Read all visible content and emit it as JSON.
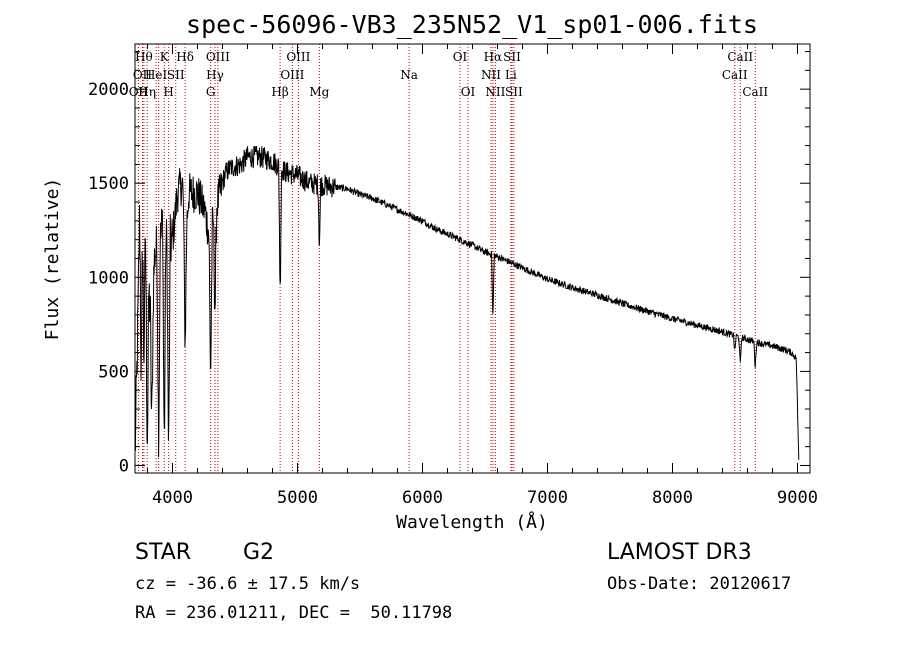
{
  "chart_data": {
    "type": "line",
    "title": "spec-56096-VB3_235N52_V1_sp01-006.fits",
    "xlabel": "Wavelength (Å)",
    "ylabel": "Flux (relative)",
    "xlim": [
      3700,
      9100
    ],
    "ylim": [
      -40,
      2240
    ],
    "xticks": [
      4000,
      5000,
      6000,
      7000,
      8000,
      9000
    ],
    "yticks": [
      0,
      500,
      1000,
      1500,
      2000
    ],
    "spectrum_anchors": [
      [
        3700,
        50
      ],
      [
        3720,
        650
      ],
      [
        3740,
        1450
      ],
      [
        3760,
        1550
      ],
      [
        3780,
        1250
      ],
      [
        3800,
        1050
      ],
      [
        3830,
        700
      ],
      [
        3860,
        1150
      ],
      [
        3890,
        1100
      ],
      [
        3920,
        1300
      ],
      [
        3960,
        1150
      ],
      [
        4000,
        1200
      ],
      [
        4040,
        1450
      ],
      [
        4080,
        1500
      ],
      [
        4101,
        1150
      ],
      [
        4130,
        1450
      ],
      [
        4200,
        1450
      ],
      [
        4260,
        1350
      ],
      [
        4300,
        1200
      ],
      [
        4340,
        1350
      ],
      [
        4380,
        1450
      ],
      [
        4420,
        1550
      ],
      [
        4460,
        1580
      ],
      [
        4500,
        1590
      ],
      [
        4550,
        1600
      ],
      [
        4600,
        1640
      ],
      [
        4700,
        1640
      ],
      [
        4800,
        1620
      ],
      [
        4900,
        1560
      ],
      [
        5000,
        1540
      ],
      [
        5100,
        1500
      ],
      [
        5200,
        1490
      ],
      [
        5300,
        1480
      ],
      [
        5400,
        1470
      ],
      [
        5500,
        1440
      ],
      [
        5600,
        1420
      ],
      [
        5700,
        1390
      ],
      [
        5800,
        1360
      ],
      [
        5900,
        1330
      ],
      [
        6000,
        1300
      ],
      [
        6100,
        1260
      ],
      [
        6200,
        1230
      ],
      [
        6300,
        1200
      ],
      [
        6400,
        1170
      ],
      [
        6500,
        1135
      ],
      [
        6600,
        1110
      ],
      [
        6700,
        1080
      ],
      [
        6800,
        1050
      ],
      [
        7000,
        990
      ],
      [
        7200,
        945
      ],
      [
        7400,
        905
      ],
      [
        7600,
        860
      ],
      [
        7800,
        820
      ],
      [
        8000,
        780
      ],
      [
        8200,
        745
      ],
      [
        8400,
        710
      ],
      [
        8500,
        690
      ],
      [
        8600,
        670
      ],
      [
        8700,
        650
      ],
      [
        8800,
        635
      ],
      [
        8900,
        615
      ],
      [
        8950,
        600
      ],
      [
        8990,
        570
      ],
      [
        9000,
        300
      ],
      [
        9010,
        30
      ]
    ],
    "absorption_dips": [
      {
        "x": 3750,
        "depth": 1000
      },
      {
        "x": 3770,
        "depth": 800
      },
      {
        "x": 3798,
        "depth": 900
      },
      {
        "x": 3835,
        "depth": 500
      },
      {
        "x": 3889,
        "depth": 900
      },
      {
        "x": 3934,
        "depth": 1100
      },
      {
        "x": 3969,
        "depth": 1050
      },
      {
        "x": 4101,
        "depth": 500
      },
      {
        "x": 4305,
        "depth": 700
      },
      {
        "x": 4340,
        "depth": 500
      },
      {
        "x": 4861,
        "depth": 650
      },
      {
        "x": 5175,
        "depth": 300
      },
      {
        "x": 6563,
        "depth": 320
      },
      {
        "x": 8498,
        "depth": 80
      },
      {
        "x": 8542,
        "depth": 140
      },
      {
        "x": 8662,
        "depth": 130
      }
    ],
    "reference_lines": [
      {
        "wave": 3727,
        "label": "OII",
        "row": 3
      },
      {
        "wave": 3760,
        "label": "OII",
        "row": 2
      },
      {
        "wave": 3771,
        "label": "Hθ",
        "row": 1
      },
      {
        "wave": 3797,
        "label": "Hη",
        "row": 3
      },
      {
        "wave": 3869,
        "label": "HeI",
        "row": 2
      },
      {
        "wave": 3889,
        "label": "",
        "row": 0
      },
      {
        "wave": 3934,
        "label": "K",
        "row": 1
      },
      {
        "wave": 3969,
        "label": "H",
        "row": 3
      },
      {
        "wave": 4026,
        "label": "SII",
        "row": 2
      },
      {
        "wave": 4101,
        "label": "Hδ",
        "row": 1
      },
      {
        "wave": 4305,
        "label": "G",
        "row": 3
      },
      {
        "wave": 4340,
        "label": "Hγ",
        "row": 2
      },
      {
        "wave": 4363,
        "label": "OIII",
        "row": 1
      },
      {
        "wave": 4861,
        "label": "Hβ",
        "row": 3
      },
      {
        "wave": 4959,
        "label": "OIII",
        "row": 2
      },
      {
        "wave": 5007,
        "label": "OIII",
        "row": 1
      },
      {
        "wave": 5175,
        "label": "Mg",
        "row": 3
      },
      {
        "wave": 5893,
        "label": "Na",
        "row": 2
      },
      {
        "wave": 6300,
        "label": "OI",
        "row": 1
      },
      {
        "wave": 6364,
        "label": "OI",
        "row": 3
      },
      {
        "wave": 6548,
        "label": "NII",
        "row": 2
      },
      {
        "wave": 6563,
        "label": "Hα",
        "row": 1
      },
      {
        "wave": 6583,
        "label": "NII",
        "row": 3
      },
      {
        "wave": 6707,
        "label": "Li",
        "row": 2
      },
      {
        "wave": 6716,
        "label": "SII",
        "row": 1
      },
      {
        "wave": 6731,
        "label": "SII",
        "row": 3
      },
      {
        "wave": 8498,
        "label": "CaII",
        "row": 2
      },
      {
        "wave": 8542,
        "label": "CaII",
        "row": 1
      },
      {
        "wave": 8662,
        "label": "CaII",
        "row": 3
      }
    ]
  },
  "info": {
    "object_class": "STAR",
    "subclass": "G2",
    "survey": "LAMOST DR3",
    "redshift": "cz = -36.6 ± 17.5 km/s",
    "obs_date": "Obs-Date: 20120617",
    "coords": "RA = 236.01211, DEC =  50.11798"
  },
  "colors": {
    "reference_line": "#c00000",
    "spectrum": "#000000"
  }
}
